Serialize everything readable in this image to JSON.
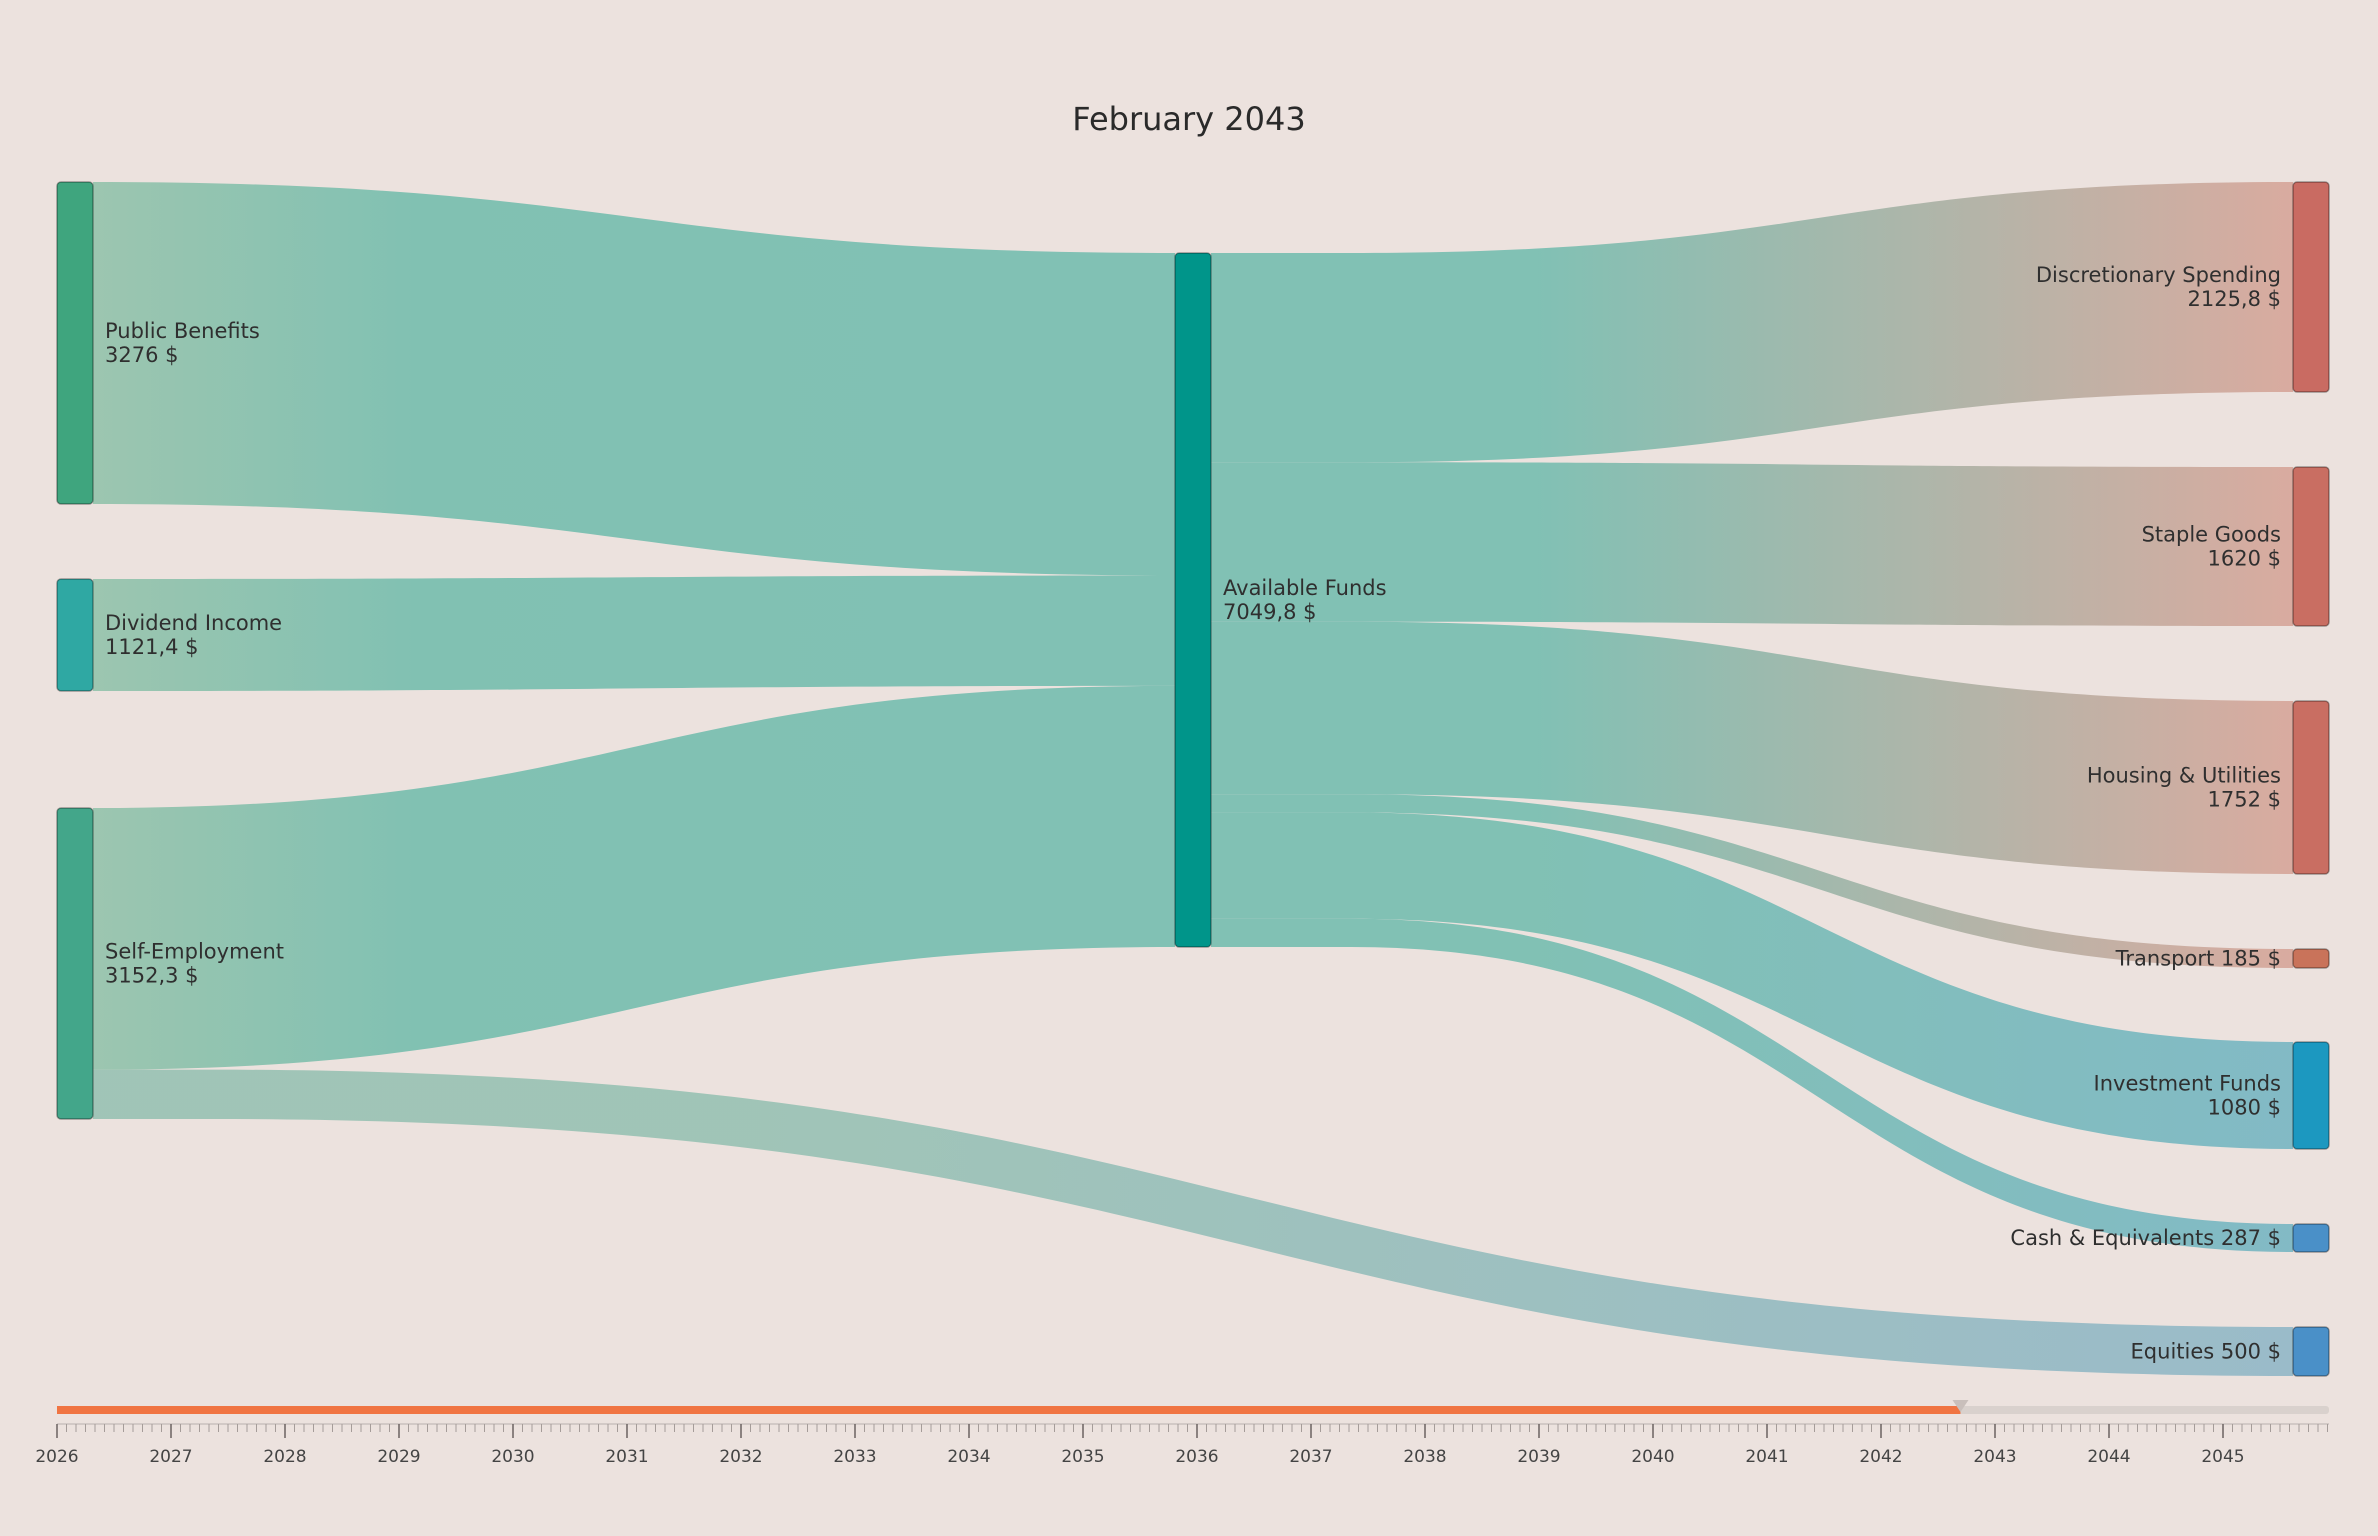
{
  "chart_data": {
    "type": "sankey",
    "title": "February 2043",
    "nodes": [
      {
        "id": "public_benefits",
        "label": "Public Benefits",
        "value_label": "3276 $",
        "value": 3276,
        "column": 0,
        "color": "#3fa57e"
      },
      {
        "id": "dividend_income",
        "label": "Dividend Income",
        "value_label": "1121,4 $",
        "value": 1121.4,
        "column": 0,
        "color": "#2fa8a3"
      },
      {
        "id": "self_employment",
        "label": "Self-Employment",
        "value_label": "3152,3 $",
        "value": 3152.3,
        "column": 0,
        "color": "#43a68a"
      },
      {
        "id": "available_funds",
        "label": "Available Funds",
        "value_label": "7049,8 $",
        "value": 7049.8,
        "column": 1,
        "color": "#00958a"
      },
      {
        "id": "discretionary",
        "label": "Discretionary Spending",
        "value_label": "2125,8 $",
        "value": 2125.8,
        "column": 2,
        "color": "#c96b62"
      },
      {
        "id": "staple_goods",
        "label": "Staple Goods",
        "value_label": "1620 $",
        "value": 1620,
        "column": 2,
        "color": "#c96e62"
      },
      {
        "id": "housing",
        "label": "Housing & Utilities",
        "value_label": "1752 $",
        "value": 1752,
        "column": 2,
        "color": "#c96e62"
      },
      {
        "id": "transport",
        "label": "Transport",
        "value_label": "185 $",
        "value": 185,
        "column": 2,
        "color": "#c9735a"
      },
      {
        "id": "investment_funds",
        "label": "Investment Funds",
        "value_label": "1080 $",
        "value": 1080,
        "column": 2,
        "color": "#1c98c0"
      },
      {
        "id": "cash",
        "label": "Cash & Equivalents",
        "value_label": "287 $",
        "value": 287,
        "column": 2,
        "color": "#4a90c8"
      },
      {
        "id": "equities",
        "label": "Equities",
        "value_label": "500 $",
        "value": 500,
        "column": 2,
        "color": "#4a90c8"
      }
    ],
    "links": [
      {
        "source": "public_benefits",
        "target": "available_funds",
        "value": 3276
      },
      {
        "source": "dividend_income",
        "target": "available_funds",
        "value": 1121.4
      },
      {
        "source": "self_employment",
        "target": "available_funds",
        "value": 2652.3
      },
      {
        "source": "self_employment",
        "target": "equities",
        "value": 500
      },
      {
        "source": "available_funds",
        "target": "discretionary",
        "value": 2125.8
      },
      {
        "source": "available_funds",
        "target": "staple_goods",
        "value": 1620
      },
      {
        "source": "available_funds",
        "target": "housing",
        "value": 1752
      },
      {
        "source": "available_funds",
        "target": "transport",
        "value": 185
      },
      {
        "source": "available_funds",
        "target": "investment_funds",
        "value": 1080
      },
      {
        "source": "available_funds",
        "target": "cash",
        "value": 287
      }
    ]
  },
  "timeline": {
    "years": [
      "2026",
      "2027",
      "2028",
      "2029",
      "2030",
      "2031",
      "2032",
      "2033",
      "2034",
      "2035",
      "2036",
      "2037",
      "2038",
      "2039",
      "2040",
      "2041",
      "2042",
      "2043",
      "2044",
      "2045"
    ],
    "progress": 0.8378,
    "progress_color": "#f07442",
    "track_color": "#d9d1cd"
  },
  "colors": {
    "background": "#ece2de",
    "income_flow": "#7bbfb2",
    "expense_flow": "#d8a89c",
    "saving_flow": "#7db8c4",
    "equities_flow": "#96b9c8"
  }
}
